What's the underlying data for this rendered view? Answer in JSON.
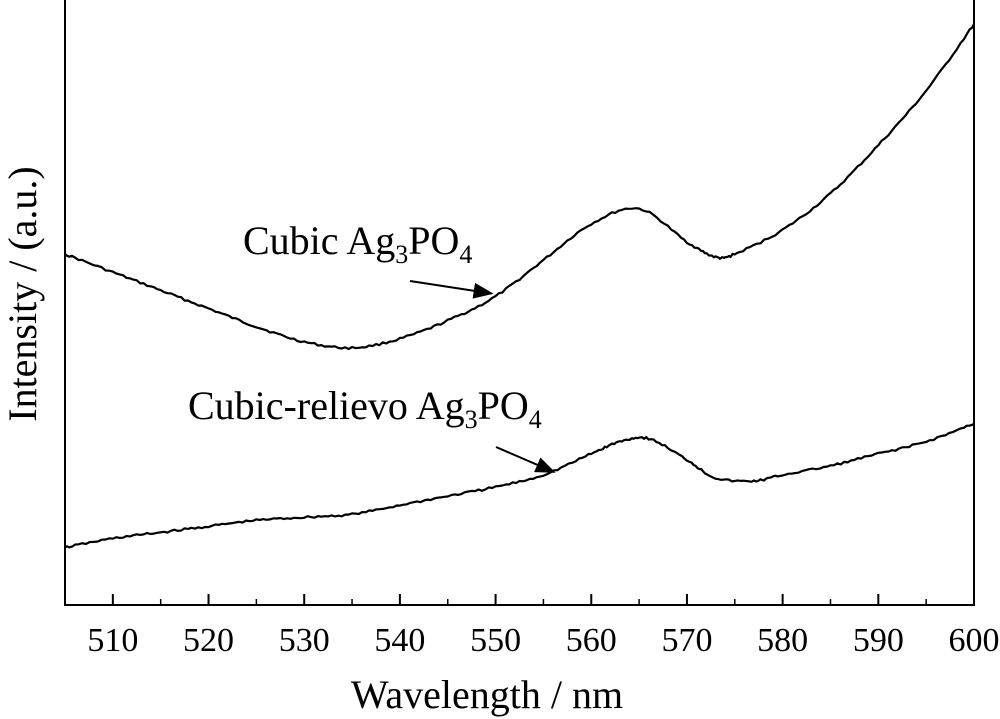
{
  "chart_data": {
    "type": "line",
    "xlabel": "Wavelength / nm",
    "ylabel": "Intensity / (a.u.)",
    "xlim": [
      505,
      600
    ],
    "ylim": [
      0,
      1
    ],
    "xticks": [
      510,
      520,
      530,
      540,
      550,
      560,
      570,
      580,
      590,
      600
    ],
    "xtick_labels": [
      "510",
      "520",
      "530",
      "540",
      "550",
      "560",
      "570",
      "580",
      "590",
      "600"
    ],
    "y_tick_labels_shown": false,
    "grid": false,
    "series": [
      {
        "name": "Cubic Ag3PO4",
        "label_base": "Cubic Ag",
        "label_sub1": "3",
        "label_mid": "PO",
        "label_sub2": "4",
        "x": [
          505,
          510,
          515,
          520,
          525,
          530,
          535,
          540,
          545,
          550,
          555,
          560,
          565,
          570,
          573,
          575,
          580,
          585,
          590,
          595,
          600
        ],
        "y": [
          0.58,
          0.55,
          0.52,
          0.49,
          0.46,
          0.435,
          0.425,
          0.44,
          0.47,
          0.51,
          0.57,
          0.63,
          0.655,
          0.6,
          0.575,
          0.58,
          0.62,
          0.68,
          0.76,
          0.85,
          0.96
        ]
      },
      {
        "name": "Cubic-relievo Ag3PO4",
        "label_base": "Cubic-relievo Ag",
        "label_sub1": "3",
        "label_mid": "PO",
        "label_sub2": "4",
        "x": [
          505,
          510,
          515,
          520,
          525,
          530,
          535,
          540,
          545,
          550,
          555,
          560,
          563,
          566,
          570,
          573,
          577,
          580,
          585,
          590,
          595,
          600
        ],
        "y": [
          0.095,
          0.11,
          0.12,
          0.13,
          0.14,
          0.145,
          0.15,
          0.165,
          0.18,
          0.195,
          0.215,
          0.25,
          0.27,
          0.275,
          0.24,
          0.21,
          0.205,
          0.215,
          0.23,
          0.25,
          0.27,
          0.3
        ]
      }
    ],
    "annotations": [
      {
        "type": "arrow",
        "series": 0,
        "from_series_label": true,
        "to": [
          550,
          0.51
        ]
      },
      {
        "type": "arrow",
        "series": 1,
        "from_series_label": true,
        "to": [
          556.5,
          0.215
        ]
      }
    ]
  }
}
